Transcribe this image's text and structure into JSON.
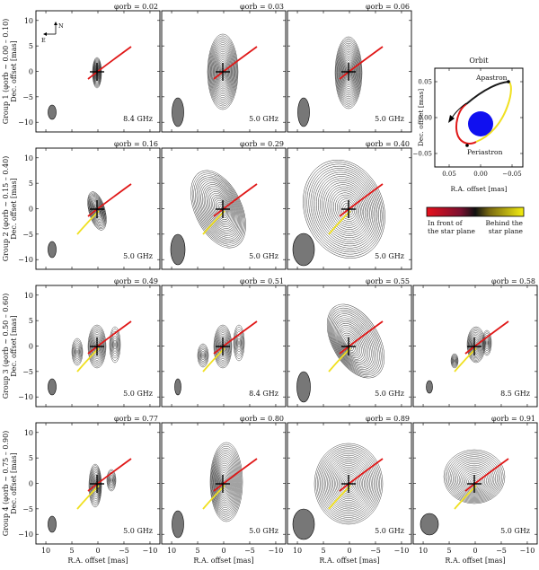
{
  "panels": [
    {
      "phase": "φorb = 0.02",
      "freq": "8.4 GHz"
    },
    {
      "phase": "φorb = 0.03",
      "freq": "5.0 GHz"
    },
    {
      "phase": "φorb = 0.06",
      "freq": "5.0 GHz"
    },
    {
      "phase": "φorb = 0.16",
      "freq": "5.0 GHz"
    },
    {
      "phase": "φorb = 0.29",
      "freq": "5.0 GHz"
    },
    {
      "phase": "φorb = 0.40",
      "freq": "5.0 GHz"
    },
    {
      "phase": "φorb = 0.49",
      "freq": "5.0 GHz"
    },
    {
      "phase": "φorb = 0.51",
      "freq": "8.4 GHz"
    },
    {
      "phase": "φorb = 0.55",
      "freq": "5.0 GHz"
    },
    {
      "phase": "φorb = 0.58",
      "freq": "8.5 GHz"
    },
    {
      "phase": "φorb = 0.77",
      "freq": "5.0 GHz"
    },
    {
      "phase": "φorb = 0.80",
      "freq": "5.0 GHz"
    },
    {
      "phase": "φorb = 0.89",
      "freq": "5.0 GHz"
    },
    {
      "phase": "φorb = 0.91",
      "freq": "5.0 GHz"
    }
  ],
  "row_labels": [
    "Group 1 (φorb ~ 0.00 – 0.10)",
    "Group 2 (φorb ~ 0.15 – 0.40)",
    "Group 3 (φorb ~ 0.50 – 0.60)",
    "Group 4 (φorb ~ 0.75 – 0.90)"
  ],
  "axes": {
    "ylabel": "Dec. offset [mas]",
    "xlabel": "R.A. offset [mas]",
    "yticks": [
      "10",
      "5",
      "0",
      "−5",
      "−10"
    ],
    "xticks": [
      "10",
      "5",
      "0",
      "−5",
      "−10"
    ]
  },
  "compass": {
    "north": "N",
    "east": "E"
  },
  "orbit": {
    "title": "Orbit",
    "ylabel": "Dec. offset [mas]",
    "xlabel": "R.A. offset [mas]",
    "apastron": "Apastron",
    "periastron": "Periastron",
    "xticks": [
      "0.05",
      "0.00",
      "−0.05"
    ],
    "yticks": [
      "0.05",
      "0.00",
      "−0.05"
    ]
  },
  "colorbar": {
    "left_label_1": "In front of",
    "left_label_2": "the star plane",
    "right_label_1": "Behind the",
    "right_label_2": "star plane",
    "colors": [
      "#d7191c",
      "#111111",
      "#f4e400"
    ]
  }
}
